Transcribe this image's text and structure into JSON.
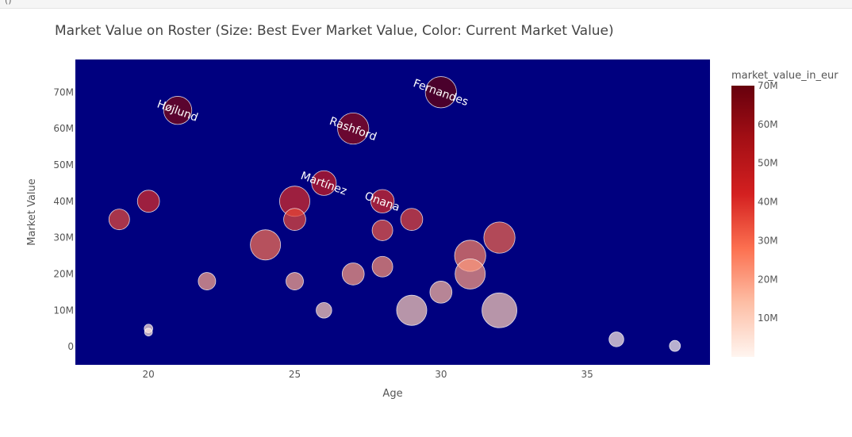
{
  "notebook": {
    "top_fragment": "()"
  },
  "chart_data": {
    "type": "scatter",
    "title": "Market Value on Roster (Size: Best Ever Market Value, Color: Current Market Value)",
    "xlabel": "Age",
    "ylabel": "Market Value",
    "xlim": [
      17.5,
      39.2
    ],
    "ylim": [
      -5000000,
      79000000
    ],
    "x_ticks": [
      20,
      25,
      30,
      35
    ],
    "x_tick_labels": [
      "20",
      "25",
      "30",
      "35"
    ],
    "y_ticks": [
      0,
      10000000,
      20000000,
      30000000,
      40000000,
      50000000,
      60000000,
      70000000
    ],
    "y_tick_labels": [
      "0",
      "10M",
      "20M",
      "30M",
      "40M",
      "50M",
      "60M",
      "70M"
    ],
    "colorbar": {
      "title": "market_value_in_eur",
      "range": [
        0,
        70000000
      ],
      "tick_values": [
        10000000,
        20000000,
        30000000,
        40000000,
        50000000,
        60000000,
        70000000
      ],
      "tick_labels": [
        "10M",
        "20M",
        "30M",
        "40M",
        "50M",
        "60M",
        "70M"
      ],
      "colors": [
        "#fff5f0",
        "#fdbea5",
        "#fc7050",
        "#d42020",
        "#a50f15",
        "#67000d"
      ]
    },
    "plot_bgcolor": "#00007f",
    "points": [
      {
        "x": 30,
        "y": 70000000,
        "size": 80000000,
        "label": "Fernandes"
      },
      {
        "x": 21,
        "y": 65000000,
        "size": 65000000,
        "label": "Højlund"
      },
      {
        "x": 27,
        "y": 60000000,
        "size": 80000000,
        "label": "Rashford"
      },
      {
        "x": 26,
        "y": 45000000,
        "size": 50000000,
        "label": "Martínez"
      },
      {
        "x": 28,
        "y": 40000000,
        "size": 45000000,
        "label": "Onana"
      },
      {
        "x": 19,
        "y": 35000000,
        "size": 35000000
      },
      {
        "x": 20,
        "y": 40000000,
        "size": 40000000
      },
      {
        "x": 25,
        "y": 40000000,
        "size": 75000000
      },
      {
        "x": 25,
        "y": 35000000,
        "size": 40000000
      },
      {
        "x": 24,
        "y": 28000000,
        "size": 75000000
      },
      {
        "x": 22,
        "y": 18000000,
        "size": 25000000
      },
      {
        "x": 25,
        "y": 18000000,
        "size": 25000000
      },
      {
        "x": 27,
        "y": 20000000,
        "size": 40000000
      },
      {
        "x": 28,
        "y": 32000000,
        "size": 35000000
      },
      {
        "x": 28,
        "y": 22000000,
        "size": 35000000
      },
      {
        "x": 29,
        "y": 35000000,
        "size": 40000000
      },
      {
        "x": 26,
        "y": 10000000,
        "size": 20000000
      },
      {
        "x": 29,
        "y": 10000000,
        "size": 75000000
      },
      {
        "x": 30,
        "y": 15000000,
        "size": 40000000
      },
      {
        "x": 31,
        "y": 25000000,
        "size": 80000000
      },
      {
        "x": 31,
        "y": 20000000,
        "size": 75000000
      },
      {
        "x": 32,
        "y": 30000000,
        "size": 80000000
      },
      {
        "x": 32,
        "y": 10000000,
        "size": 100000000
      },
      {
        "x": 20,
        "y": 5000000,
        "size": 6000000
      },
      {
        "x": 20,
        "y": 4000000,
        "size": 5000000
      },
      {
        "x": 36,
        "y": 2000000,
        "size": 18000000
      },
      {
        "x": 38,
        "y": 200000,
        "size": 10000000
      }
    ]
  }
}
